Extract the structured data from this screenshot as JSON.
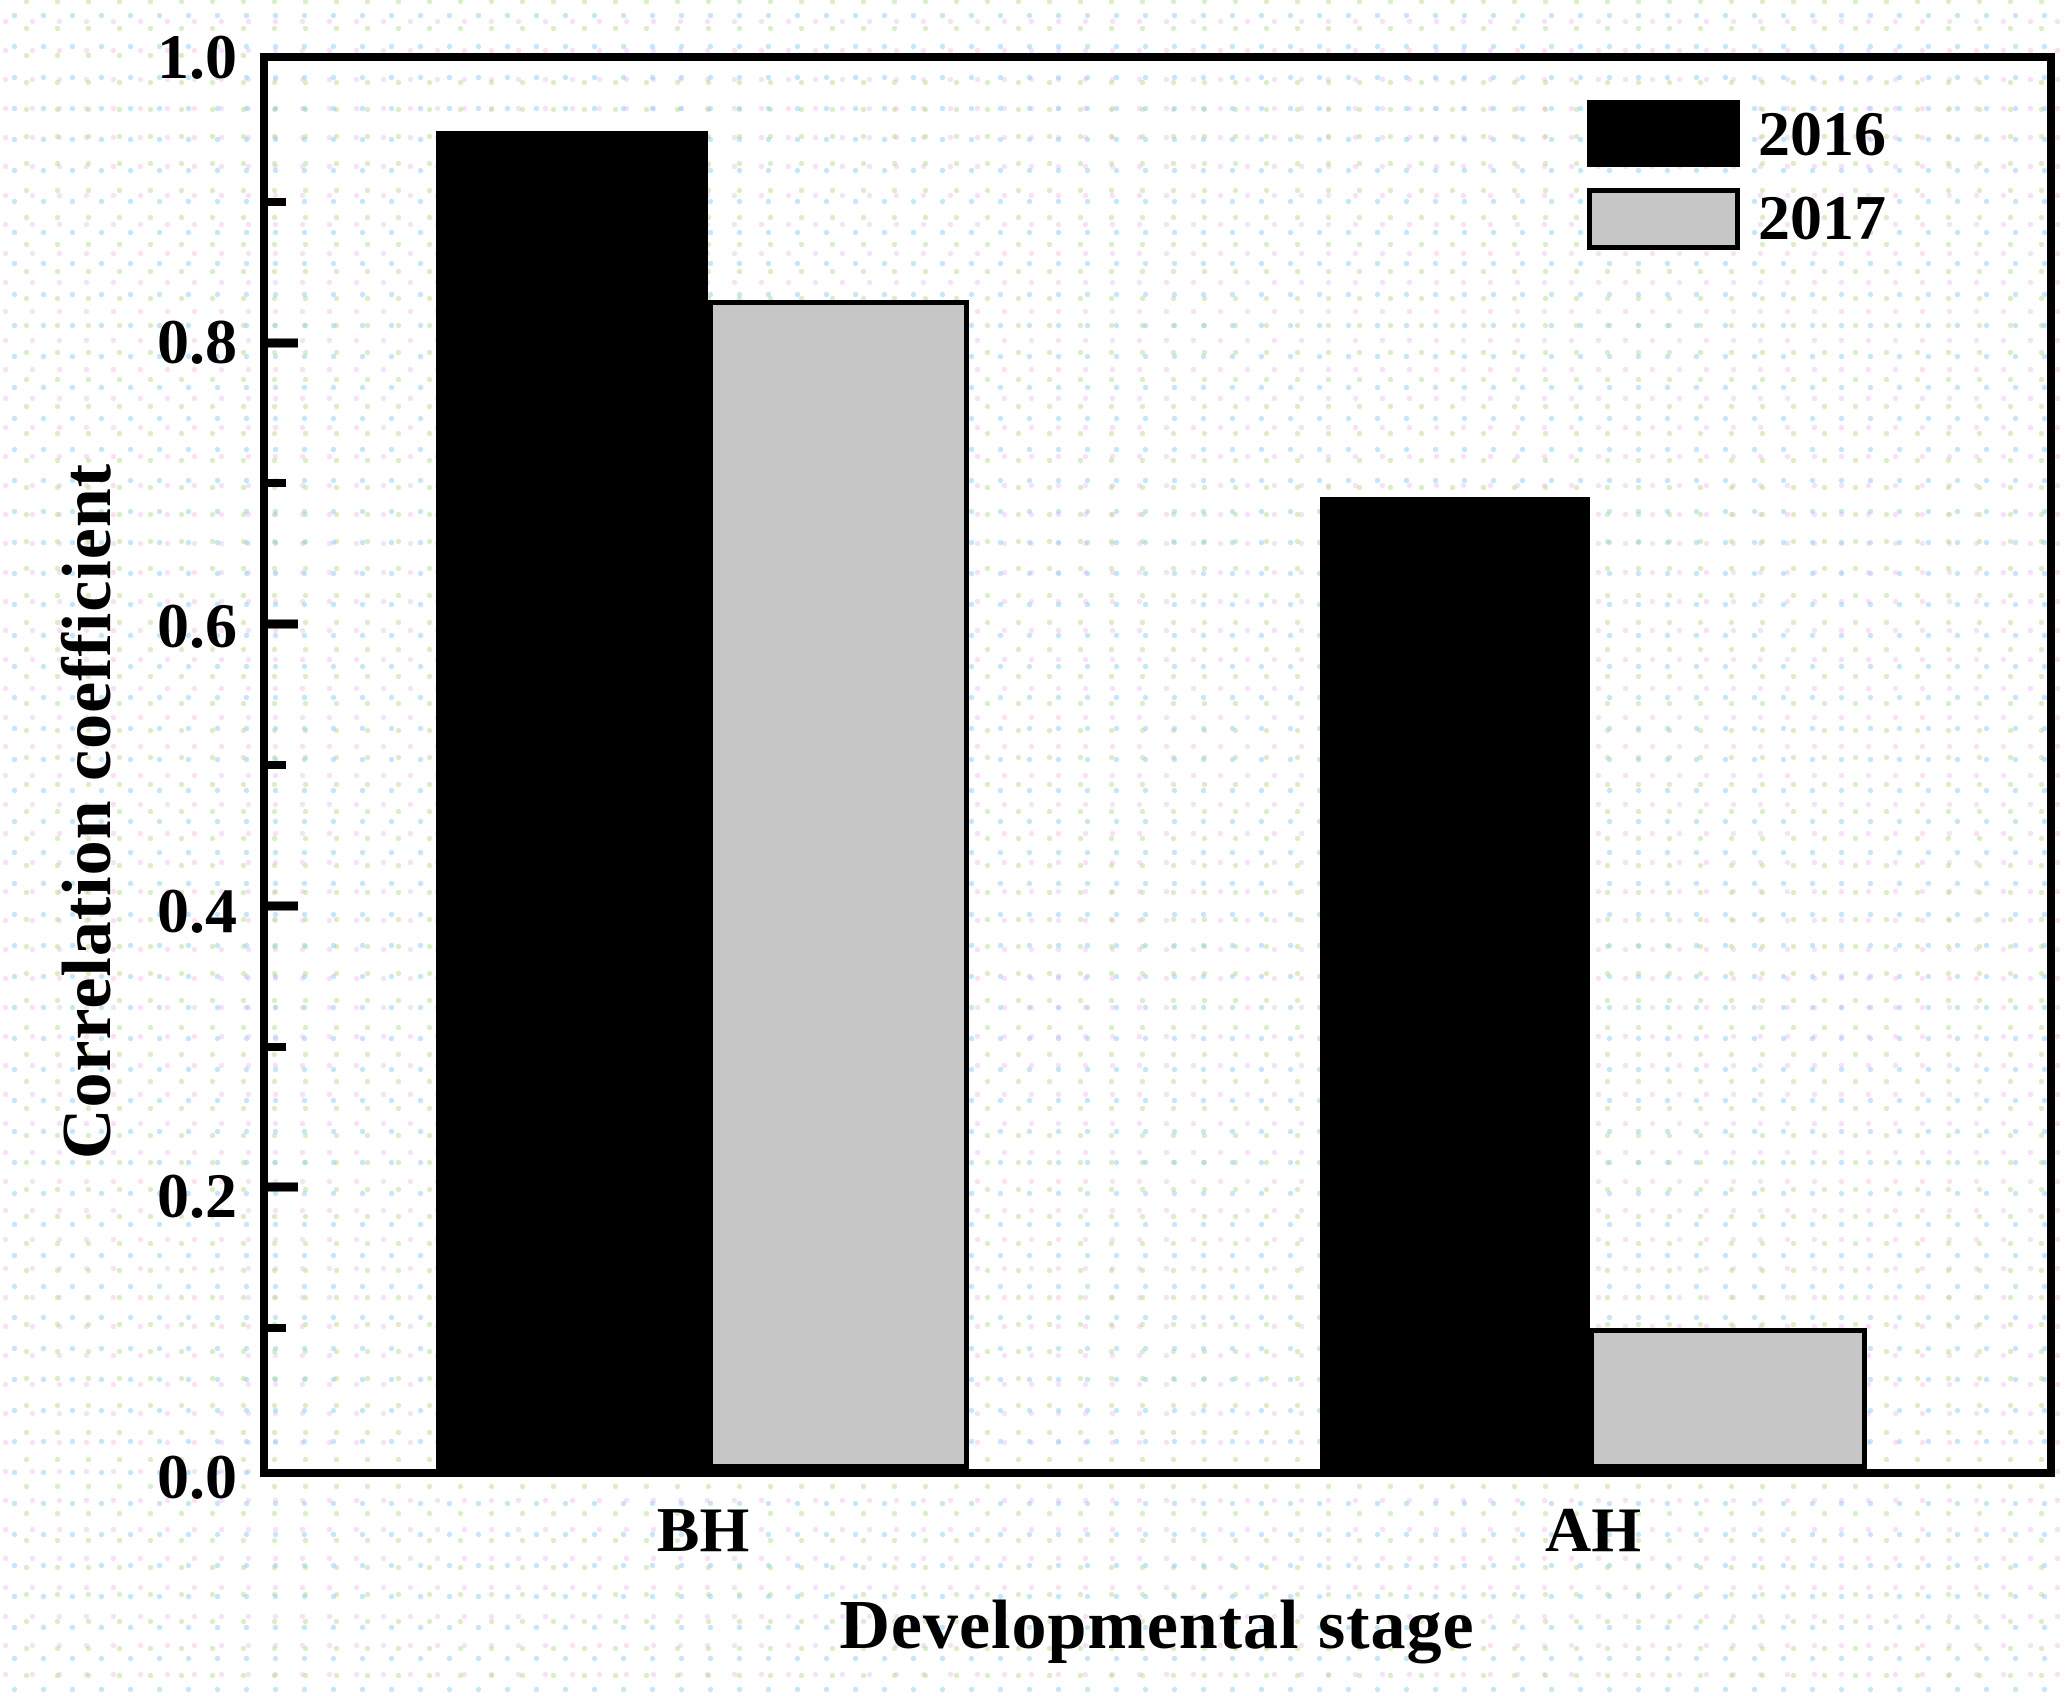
{
  "chart_data": {
    "type": "bar",
    "title": "",
    "xlabel": "Developmental stage",
    "ylabel": "Correlation coefficient",
    "categories": [
      "BH",
      "AH"
    ],
    "series": [
      {
        "name": "2016",
        "color": "#000000",
        "values": [
          0.95,
          0.69
        ]
      },
      {
        "name": "2017",
        "color": "#c6c6c6",
        "values": [
          0.83,
          0.1
        ]
      }
    ],
    "ylim": [
      0.0,
      1.0
    ],
    "ytick_labels": [
      "1.0",
      "0.8",
      "0.6",
      "0.4",
      "0.2",
      "0.0"
    ],
    "ytick_step": 0.2,
    "minor_tick_step": 0.1,
    "grid": false,
    "legend_position": "top-right",
    "bar_border_color": "#000000",
    "background_color": "#ffffff"
  }
}
